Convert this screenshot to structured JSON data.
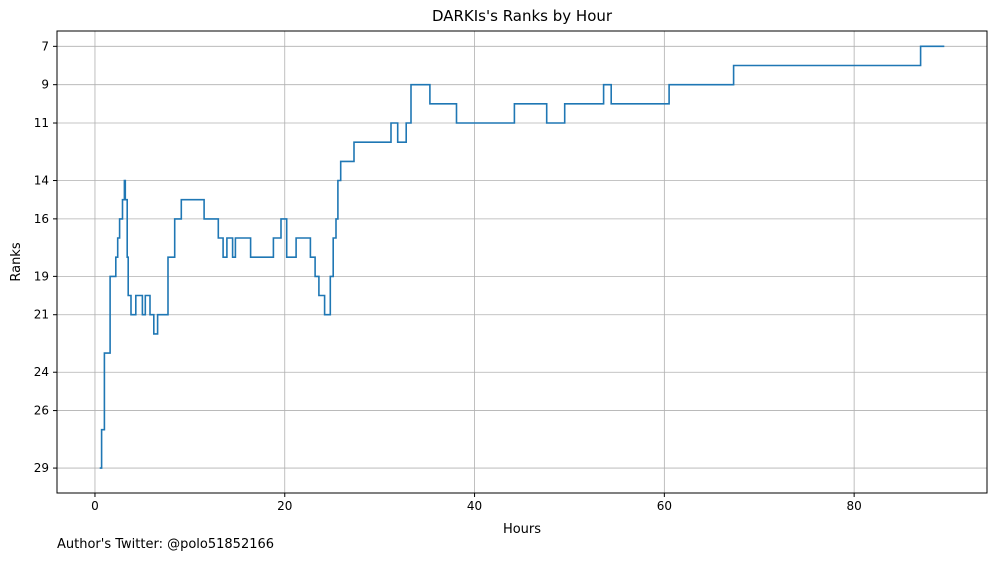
{
  "chart_data": {
    "type": "line",
    "drawstyle": "steps-post",
    "title": "DARKIs's Ranks by Hour",
    "xlabel": "Hours",
    "ylabel": "Ranks",
    "xlim": [
      -4,
      94
    ],
    "ylim": [
      30.3,
      6.2
    ],
    "y_inverted": true,
    "grid": true,
    "xticks": [
      0,
      20,
      40,
      60,
      80
    ],
    "yticks": [
      7,
      9,
      11,
      14,
      16,
      19,
      21,
      24,
      26,
      29
    ],
    "line_color": "#1f77b4",
    "series": [
      {
        "x": [
          0.5,
          0.7,
          1.0,
          1.6,
          2.2,
          2.4,
          2.6,
          2.9,
          3.1,
          3.2,
          3.4,
          3.5,
          3.6,
          3.8,
          4.3,
          5.0,
          5.3,
          5.8,
          6.2,
          6.6,
          7.7,
          8.4,
          9.1,
          9.6,
          11.5,
          13.0,
          13.5,
          13.9,
          14.5,
          14.8,
          15.0,
          16.4,
          18.8,
          19.6,
          20.2,
          21.2,
          22.7,
          23.2,
          23.6,
          24.2,
          24.8,
          25.1,
          25.4,
          25.6,
          25.9,
          27.3,
          31.2,
          31.9,
          32.8,
          33.3,
          35.3,
          38.1,
          44.2,
          47.6,
          49.5,
          53.6,
          54.4,
          60.5,
          67.3,
          87.0,
          89.5
        ],
        "y": [
          29,
          27,
          23,
          19,
          18,
          17,
          16,
          15,
          14,
          15,
          18,
          20,
          20,
          21,
          20,
          21,
          20,
          21,
          22,
          21,
          18,
          16,
          15,
          15,
          16,
          17,
          18,
          17,
          18,
          17,
          17,
          18,
          17,
          16,
          18,
          17,
          18,
          19,
          20,
          21,
          19,
          17,
          16,
          14,
          13,
          12,
          11,
          12,
          11,
          9,
          10,
          11,
          10,
          11,
          10,
          9,
          10,
          9,
          8,
          7,
          7
        ]
      }
    ]
  },
  "footer": {
    "twitter_text": "Author's Twitter: @polo51852166"
  }
}
